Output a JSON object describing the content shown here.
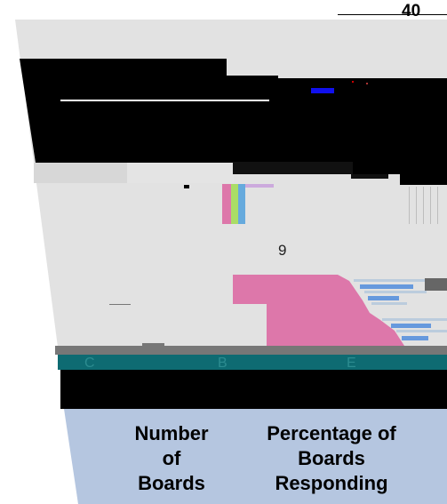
{
  "page": {
    "number": "40"
  },
  "figure": {
    "glyph": "9",
    "axis_letters": [
      "C",
      "B",
      "E"
    ]
  },
  "legend": {
    "number_of_boards": [
      "Number",
      "of",
      "Boards"
    ],
    "percentage_of_boards_responding": [
      "Percentage of",
      "Boards",
      "Responding"
    ]
  },
  "colors": {
    "pink": "#dd77aa",
    "green": "#aadd66",
    "blue": "#66aadd",
    "teal": "#0e6b72",
    "legend_bg": "#b5c6e0"
  }
}
